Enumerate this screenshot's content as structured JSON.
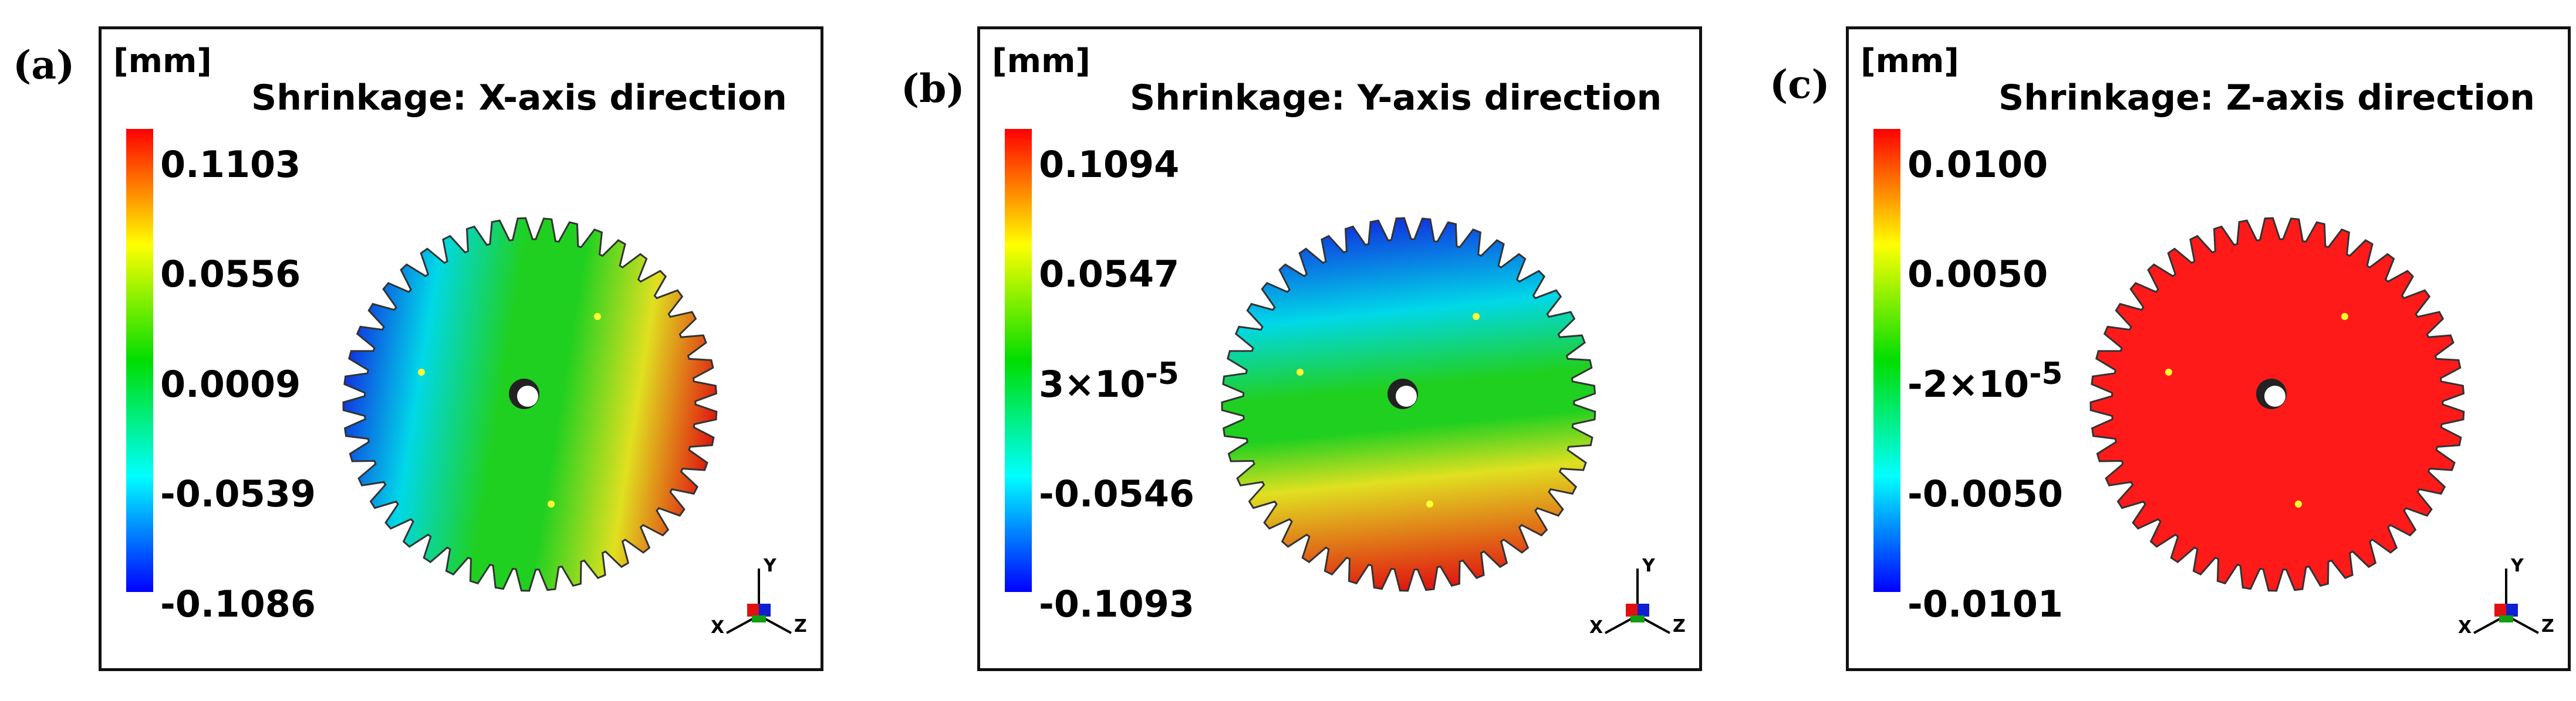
{
  "colors": {
    "scale": [
      "#0000ff",
      "#00ffff",
      "#00dd00",
      "#ffff00",
      "#ff0000"
    ],
    "uniform_red": "#ff1a1a",
    "frame": "#111111"
  },
  "panels": [
    {
      "letter": "(a)",
      "unit": "[mm]",
      "title": "Shrinkage: X-axis direction",
      "ticks": [
        "0.1103",
        "0.0556",
        "0.0009",
        "-0.0539",
        "-0.1086"
      ],
      "tick_sup": [
        "",
        "",
        "",
        "",
        ""
      ],
      "gradient": "x",
      "triad": {
        "x": "X",
        "y": "Y",
        "z": "Z"
      }
    },
    {
      "letter": "(b)",
      "unit": "[mm]",
      "title": "Shrinkage: Y-axis direction",
      "ticks": [
        "0.1094",
        "0.0547",
        "3×10",
        "-0.0546",
        "-0.1093"
      ],
      "tick_sup": [
        "",
        "",
        "-5",
        "",
        ""
      ],
      "gradient": "y",
      "triad": {
        "x": "X",
        "y": "Y",
        "z": "Z"
      }
    },
    {
      "letter": "(c)",
      "unit": "[mm]",
      "title": "Shrinkage: Z-axis direction",
      "ticks": [
        "0.0100",
        "0.0050",
        "-2×10",
        "-0.0050",
        "-0.0101"
      ],
      "tick_sup": [
        "",
        "",
        "-5",
        "",
        ""
      ],
      "gradient": "uniform",
      "triad": {
        "x": "X",
        "y": "Y",
        "z": "Z"
      }
    }
  ]
}
